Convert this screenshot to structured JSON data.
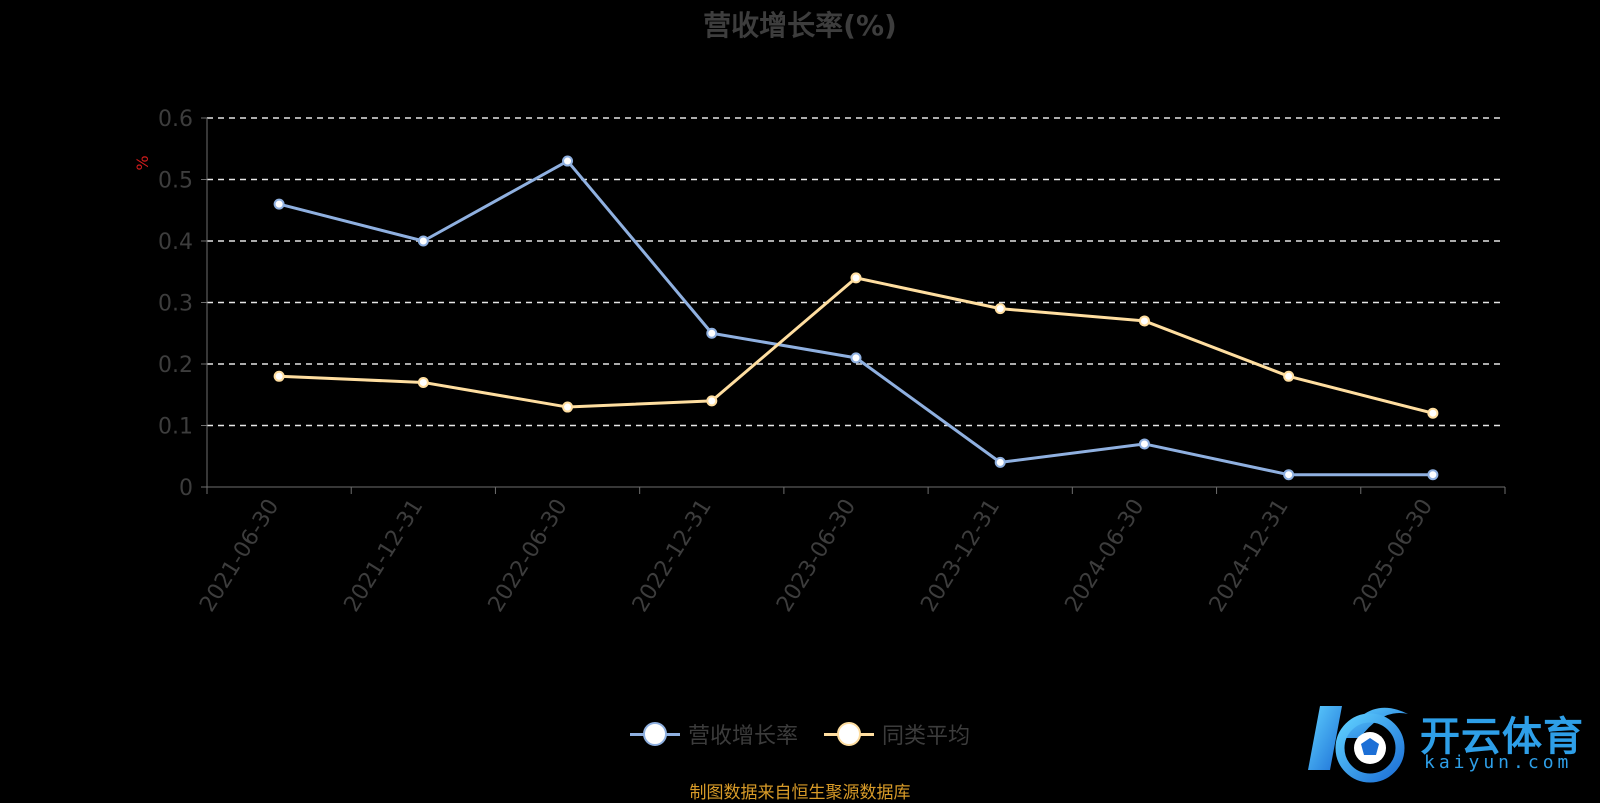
{
  "chart_data": {
    "type": "line",
    "title": "营收增长率(%)",
    "ylabel": "%",
    "xlabel": "",
    "ylim": [
      0,
      0.6
    ],
    "yticks": [
      0,
      0.1,
      0.2,
      0.3,
      0.4,
      0.5,
      0.6
    ],
    "grid": true,
    "legend_position": "bottom",
    "categories": [
      "2021-06-30",
      "2021-12-31",
      "2022-06-30",
      "2022-12-31",
      "2023-06-30",
      "2023-12-31",
      "2024-06-30",
      "2024-12-31",
      "2025-06-30"
    ],
    "series": [
      {
        "name": "营收增长率",
        "color": "#8fb0e0",
        "values": [
          0.46,
          0.4,
          0.53,
          0.25,
          0.21,
          0.04,
          0.07,
          0.02,
          0.02
        ]
      },
      {
        "name": "同类平均",
        "color": "#ffdea0",
        "values": [
          0.18,
          0.17,
          0.13,
          0.14,
          0.34,
          0.29,
          0.27,
          0.18,
          0.12
        ]
      }
    ]
  },
  "footer": {
    "source_text": "制图数据来自恒生聚源数据库"
  },
  "watermark": {
    "brand": "开云体育",
    "domain": "kaiyun.com",
    "color": "#2e9fe8"
  }
}
